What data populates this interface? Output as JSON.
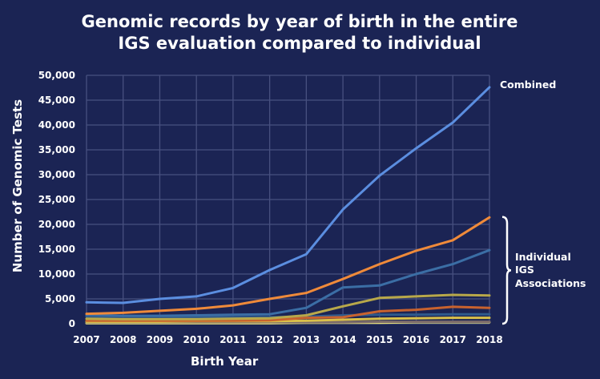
{
  "chart_data": {
    "type": "line",
    "title_lines": [
      "Genomic records by year of birth in the entire",
      "IGS evaluation compared to individual"
    ],
    "xlabel": "Birth Year",
    "ylabel": "Number of Genomic Tests",
    "x": [
      2007,
      2008,
      2009,
      2010,
      2011,
      2012,
      2013,
      2014,
      2015,
      2016,
      2017,
      2018
    ],
    "x_tick_labels": [
      "2007",
      "2008",
      "2009",
      "2010",
      "2011",
      "2012",
      "2013",
      "2014",
      "2015",
      "2016",
      "2017",
      "2018"
    ],
    "y_tick_labels": [
      "0",
      "5,000",
      "10,000",
      "15,000",
      "20,000",
      "25,000",
      "30,000",
      "35,000",
      "40,000",
      "45,000",
      "50,000"
    ],
    "ylim": [
      0,
      50000
    ],
    "grid": true,
    "series": [
      {
        "name": "Combined",
        "color": "#5b8ee0",
        "values": [
          4300,
          4200,
          5000,
          5500,
          7200,
          10800,
          14000,
          23000,
          29800,
          35300,
          40500,
          47600
        ]
      },
      {
        "color": "#ef8a3a",
        "values": [
          2000,
          2200,
          2600,
          3000,
          3700,
          5000,
          6200,
          9000,
          12000,
          14700,
          16800,
          21400
        ]
      },
      {
        "color": "#3b6ea5",
        "values": [
          1800,
          1600,
          1600,
          1700,
          1800,
          1900,
          3200,
          7300,
          7700,
          10000,
          12000,
          14800
        ]
      },
      {
        "color": "#b8a84a",
        "values": [
          1000,
          900,
          900,
          900,
          1000,
          1100,
          1700,
          3500,
          5200,
          5500,
          5800,
          5700
        ]
      },
      {
        "color": "#c8622e",
        "values": [
          600,
          600,
          600,
          600,
          600,
          700,
          1200,
          1300,
          2500,
          2800,
          3400,
          3200
        ]
      },
      {
        "color": "#2f5a8c",
        "values": [
          1500,
          1400,
          1400,
          1300,
          1300,
          1300,
          1400,
          1700,
          1800,
          1800,
          1900,
          1900
        ]
      },
      {
        "color": "#d9c04a",
        "values": [
          400,
          400,
          400,
          500,
          500,
          500,
          600,
          800,
          1000,
          1100,
          1200,
          1200
        ]
      },
      {
        "color": "#7a6a6a",
        "values": [
          300,
          300,
          300,
          300,
          300,
          300,
          300,
          300,
          400,
          400,
          400,
          400
        ]
      },
      {
        "color": "#e8e07a",
        "values": [
          100,
          100,
          100,
          100,
          100,
          100,
          200,
          200,
          200,
          300,
          300,
          300
        ]
      }
    ],
    "annotations": {
      "combined": "Combined",
      "individual_lines": [
        "Individual",
        "IGS",
        "Associations"
      ]
    },
    "bracket_range": [
      0,
      21500
    ]
  }
}
